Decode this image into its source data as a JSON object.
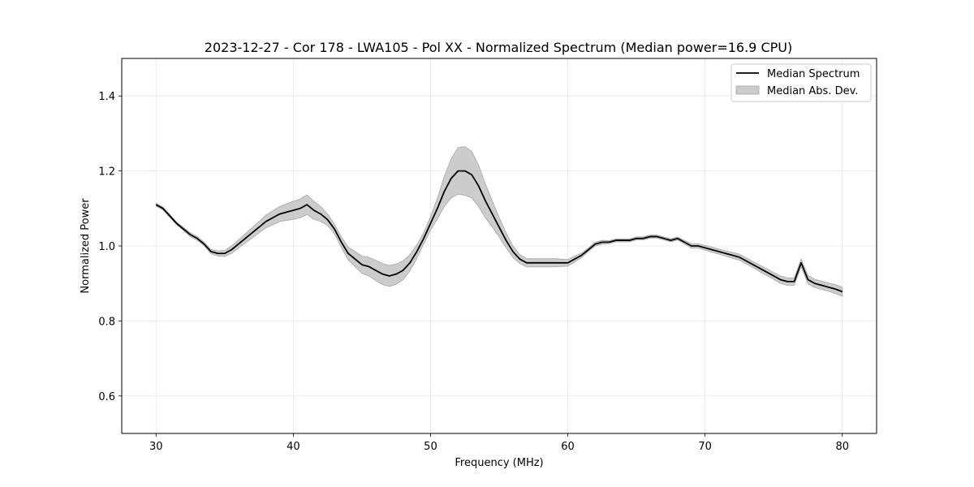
{
  "chart_data": {
    "type": "line",
    "title": "2023-12-27 - Cor 178 - LWA105 - Pol XX - Normalized Spectrum (Median power=16.9 CPU)",
    "xlabel": "Frequency (MHz)",
    "ylabel": "Normalized Power",
    "xlim": [
      27.5,
      82.5
    ],
    "ylim": [
      0.5,
      1.5
    ],
    "xticks": [
      30,
      40,
      50,
      60,
      70,
      80
    ],
    "xtick_labels": [
      "30",
      "40",
      "50",
      "60",
      "70",
      "80"
    ],
    "yticks": [
      0.6,
      0.8,
      1.0,
      1.2,
      1.4
    ],
    "ytick_labels": [
      "0.6",
      "0.8",
      "1.0",
      "1.2",
      "1.4"
    ],
    "grid": true,
    "legend_position": "top-right",
    "series": [
      {
        "name": "Median Spectrum",
        "kind": "line",
        "color": "#000000",
        "x": [
          30,
          30.5,
          31,
          31.5,
          32,
          32.5,
          33,
          33.5,
          34,
          34.5,
          35,
          35.5,
          36,
          36.5,
          37,
          37.5,
          38,
          38.5,
          39,
          39.5,
          40,
          40.5,
          41,
          41.5,
          42,
          42.5,
          43,
          43.5,
          44,
          44.5,
          45,
          45.5,
          46,
          46.5,
          47,
          47.5,
          48,
          48.5,
          49,
          49.5,
          50,
          50.5,
          51,
          51.5,
          52,
          52.5,
          53,
          53.5,
          54,
          54.5,
          55,
          55.5,
          56,
          56.5,
          57,
          57.5,
          58,
          58.5,
          59,
          59.5,
          60,
          60.5,
          61,
          61.5,
          62,
          62.5,
          63,
          63.5,
          64,
          64.5,
          65,
          65.5,
          66,
          66.5,
          67,
          67.5,
          68,
          68.5,
          69,
          69.5,
          70,
          70.5,
          71,
          71.5,
          72,
          72.5,
          73,
          73.5,
          74,
          74.5,
          75,
          75.5,
          76,
          76.5,
          77,
          77.5,
          78,
          78.5,
          79,
          79.5,
          80
        ],
        "values": [
          1.11,
          1.1,
          1.08,
          1.06,
          1.045,
          1.03,
          1.02,
          1.005,
          0.985,
          0.98,
          0.98,
          0.99,
          1.005,
          1.02,
          1.035,
          1.05,
          1.065,
          1.075,
          1.085,
          1.09,
          1.095,
          1.1,
          1.11,
          1.095,
          1.085,
          1.07,
          1.045,
          1.01,
          0.98,
          0.965,
          0.95,
          0.945,
          0.935,
          0.925,
          0.92,
          0.925,
          0.935,
          0.955,
          0.985,
          1.02,
          1.06,
          1.1,
          1.145,
          1.18,
          1.2,
          1.2,
          1.19,
          1.16,
          1.12,
          1.085,
          1.05,
          1.015,
          0.985,
          0.965,
          0.955,
          0.955,
          0.955,
          0.955,
          0.955,
          0.955,
          0.955,
          0.965,
          0.975,
          0.99,
          1.005,
          1.01,
          1.01,
          1.015,
          1.015,
          1.015,
          1.02,
          1.02,
          1.025,
          1.025,
          1.02,
          1.015,
          1.02,
          1.01,
          1.0,
          1.0,
          0.995,
          0.99,
          0.985,
          0.98,
          0.975,
          0.97,
          0.96,
          0.95,
          0.94,
          0.93,
          0.92,
          0.91,
          0.905,
          0.905,
          0.955,
          0.91,
          0.9,
          0.895,
          0.89,
          0.885,
          0.878
        ]
      },
      {
        "name": "Median Abs. Dev.",
        "kind": "band",
        "color": "#bfbfbf",
        "x": [
          30,
          30.5,
          31,
          31.5,
          32,
          32.5,
          33,
          33.5,
          34,
          34.5,
          35,
          35.5,
          36,
          36.5,
          37,
          37.5,
          38,
          38.5,
          39,
          39.5,
          40,
          40.5,
          41,
          41.5,
          42,
          42.5,
          43,
          43.5,
          44,
          44.5,
          45,
          45.5,
          46,
          46.5,
          47,
          47.5,
          48,
          48.5,
          49,
          49.5,
          50,
          50.5,
          51,
          51.5,
          52,
          52.5,
          53,
          53.5,
          54,
          54.5,
          55,
          55.5,
          56,
          56.5,
          57,
          57.5,
          58,
          58.5,
          59,
          59.5,
          60,
          60.5,
          61,
          61.5,
          62,
          62.5,
          63,
          63.5,
          64,
          64.5,
          65,
          65.5,
          66,
          66.5,
          67,
          67.5,
          68,
          68.5,
          69,
          69.5,
          70,
          70.5,
          71,
          71.5,
          72,
          72.5,
          73,
          73.5,
          74,
          74.5,
          75,
          75.5,
          76,
          76.5,
          77,
          77.5,
          78,
          78.5,
          79,
          79.5,
          80
        ],
        "deviation": [
          0.004,
          0.004,
          0.004,
          0.004,
          0.004,
          0.005,
          0.005,
          0.005,
          0.006,
          0.007,
          0.008,
          0.01,
          0.011,
          0.012,
          0.014,
          0.015,
          0.017,
          0.019,
          0.02,
          0.022,
          0.024,
          0.025,
          0.026,
          0.024,
          0.02,
          0.015,
          0.013,
          0.014,
          0.017,
          0.02,
          0.023,
          0.025,
          0.027,
          0.028,
          0.028,
          0.027,
          0.025,
          0.022,
          0.018,
          0.015,
          0.018,
          0.028,
          0.04,
          0.052,
          0.062,
          0.065,
          0.062,
          0.055,
          0.045,
          0.035,
          0.026,
          0.02,
          0.015,
          0.012,
          0.011,
          0.011,
          0.011,
          0.011,
          0.011,
          0.01,
          0.009,
          0.008,
          0.006,
          0.005,
          0.005,
          0.005,
          0.004,
          0.004,
          0.004,
          0.004,
          0.004,
          0.004,
          0.004,
          0.004,
          0.004,
          0.004,
          0.004,
          0.005,
          0.006,
          0.006,
          0.006,
          0.007,
          0.007,
          0.007,
          0.008,
          0.008,
          0.008,
          0.008,
          0.009,
          0.009,
          0.009,
          0.01,
          0.01,
          0.01,
          0.01,
          0.011,
          0.011,
          0.011,
          0.011,
          0.012,
          0.012
        ]
      }
    ]
  }
}
